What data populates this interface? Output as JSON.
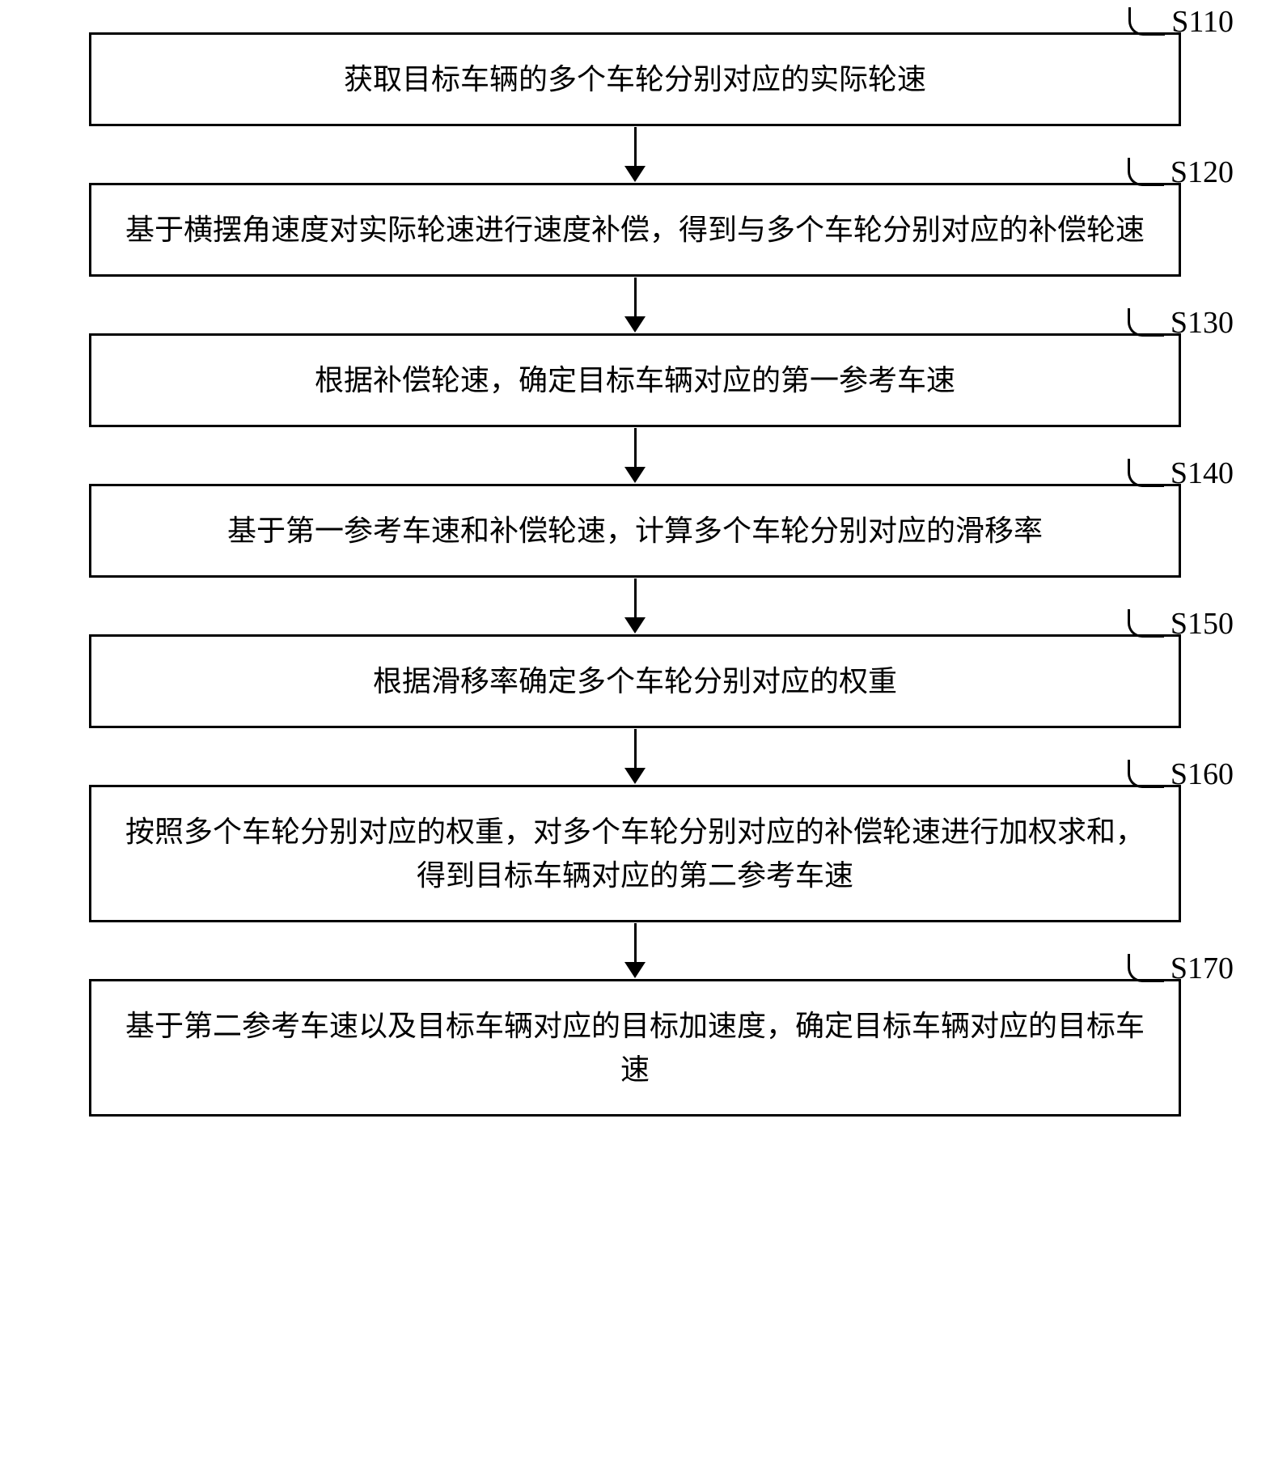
{
  "flowchart": {
    "background_color": "#ffffff",
    "border_color": "#000000",
    "border_width": 3,
    "text_color": "#000000",
    "font_size": 36,
    "label_font_size": 38,
    "box_width_pct": 90,
    "arrow_height": 70,
    "steps": [
      {
        "label": "S110",
        "text": "获取目标车辆的多个车轮分别对应的实际轮速"
      },
      {
        "label": "S120",
        "text": "基于横摆角速度对实际轮速进行速度补偿，得到与多个车轮分别对应的补偿轮速"
      },
      {
        "label": "S130",
        "text": "根据补偿轮速，确定目标车辆对应的第一参考车速"
      },
      {
        "label": "S140",
        "text": "基于第一参考车速和补偿轮速，计算多个车轮分别对应的滑移率"
      },
      {
        "label": "S150",
        "text": "根据滑移率确定多个车轮分别对应的权重"
      },
      {
        "label": "S160",
        "text": "按照多个车轮分别对应的权重，对多个车轮分别对应的补偿轮速进行加权求和，得到目标车辆对应的第二参考车速"
      },
      {
        "label": "S170",
        "text": "基于第二参考车速以及目标车辆对应的目标加速度，确定目标车辆对应的目标车速"
      }
    ]
  }
}
